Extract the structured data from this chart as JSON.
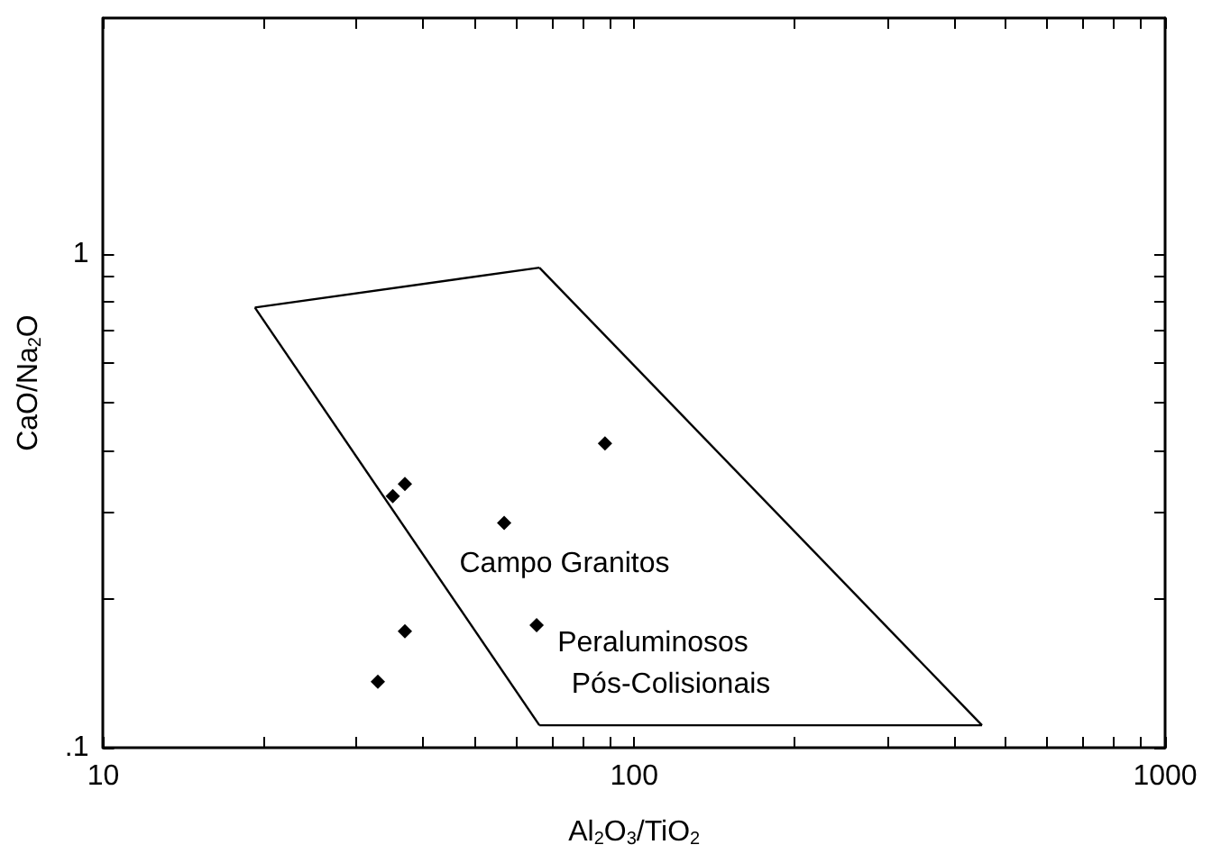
{
  "chart_data": {
    "type": "scatter",
    "xlabel": "Al$_{2}$O$_{3}$/TiO$_{2}$",
    "ylabel": "CaO/Na$_{2}$O",
    "log": "xy",
    "xlim": [
      10,
      1000
    ],
    "ylim": [
      0.1,
      3
    ],
    "xticks": [
      10,
      {
        "value": 20,
        "label": null
      },
      {
        "value": 30,
        "label": null
      },
      {
        "value": 40,
        "label": null
      },
      {
        "value": 50,
        "label": null
      },
      {
        "value": 60,
        "label": null
      },
      {
        "value": 70,
        "label": null
      },
      {
        "value": 80,
        "label": null
      },
      {
        "value": 90,
        "label": null
      },
      100,
      {
        "value": 200,
        "label": null
      },
      {
        "value": 300,
        "label": null
      },
      {
        "value": 400,
        "label": null
      },
      {
        "value": 500,
        "label": null
      },
      {
        "value": 600,
        "label": null
      },
      {
        "value": 700,
        "label": null
      },
      {
        "value": 800,
        "label": null
      },
      {
        "value": 900,
        "label": null
      },
      1000
    ],
    "yticks": [
      {
        "value": 0.1,
        "label": ".1"
      },
      {
        "value": 0.2,
        "label": null
      },
      {
        "value": 0.3,
        "label": null
      },
      {
        "value": 0.4,
        "label": null
      },
      {
        "value": 0.5,
        "label": null
      },
      {
        "value": 0.6,
        "label": null
      },
      {
        "value": 0.7,
        "label": null
      },
      {
        "value": 0.8,
        "label": null
      },
      {
        "value": 0.9,
        "label": null
      },
      1
    ],
    "grid": false,
    "series": [
      {
        "marker": "diamond",
        "color": "#000000",
        "x": [
          35.1,
          37.0,
          56.9,
          88.1,
          37.0,
          65.5,
          32.9
        ],
        "values": [
          0.323,
          0.342,
          0.285,
          0.413,
          0.172,
          0.177,
          0.136
        ]
      },
      {
        "type": "line",
        "marker": "none",
        "line_style": "solid",
        "color": "#000000",
        "x": [
          19.3,
          66.3
        ],
        "values": [
          0.778,
          0.937
        ]
      },
      {
        "type": "line",
        "marker": "none",
        "line_style": "solid",
        "color": "#000000",
        "x": [
          66.3,
          452
        ],
        "values": [
          0.937,
          0.111
        ]
      },
      {
        "type": "line",
        "marker": "none",
        "line_style": "solid",
        "color": "#000000",
        "x": [
          66.3,
          452
        ],
        "values": [
          0.111,
          0.111
        ]
      },
      {
        "type": "line",
        "marker": "none",
        "line_style": "solid",
        "color": "#000000",
        "x": [
          19.3,
          66.3
        ],
        "values": [
          0.778,
          0.111
        ]
      }
    ],
    "annotations": [
      "Campo Granitos",
      "Peraluminosos",
      "Pós-Colisionais"
    ]
  }
}
